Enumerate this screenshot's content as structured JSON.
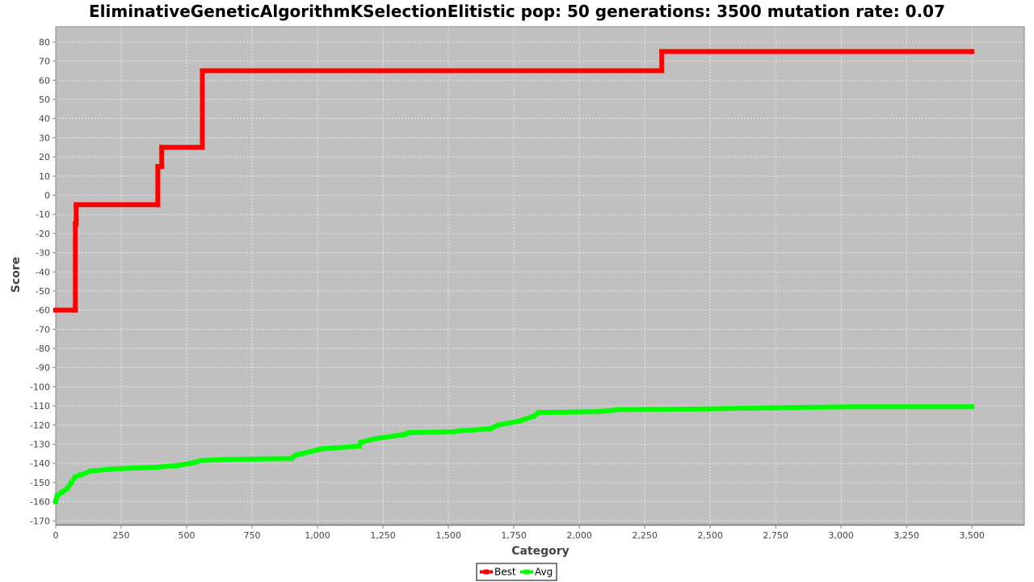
{
  "chart_data": {
    "type": "line",
    "title": "EliminativeGeneticAlgorithmKSelectionElitistic pop: 50 generations: 3500 mutation rate: 0.07",
    "xlabel": "Category",
    "ylabel": "Score",
    "xlim": [
      0,
      3700
    ],
    "ylim": [
      -172,
      88
    ],
    "x_ticks": [
      0,
      250,
      500,
      750,
      1000,
      1250,
      1500,
      1750,
      2000,
      2250,
      2500,
      2750,
      3000,
      3250,
      3500
    ],
    "x_tick_labels": [
      "0",
      "250",
      "500",
      "750",
      "1,000",
      "1,250",
      "1,500",
      "1,750",
      "2,000",
      "2,250",
      "2,500",
      "2,750",
      "3,000",
      "3,250",
      "3,500"
    ],
    "y_ticks": [
      -170,
      -160,
      -150,
      -140,
      -130,
      -120,
      -110,
      -100,
      -90,
      -80,
      -70,
      -60,
      -50,
      -40,
      -30,
      -20,
      -10,
      0,
      10,
      20,
      30,
      40,
      50,
      60,
      70,
      80
    ],
    "grid": true,
    "legend_position": "bottom-center",
    "background_color": "#c0c0c0",
    "series": [
      {
        "name": "Best",
        "color": "#ff0000",
        "points": [
          [
            0,
            -60
          ],
          [
            75,
            -60
          ],
          [
            75,
            -15
          ],
          [
            78,
            -15
          ],
          [
            78,
            -5
          ],
          [
            390,
            -5
          ],
          [
            390,
            15
          ],
          [
            405,
            15
          ],
          [
            405,
            25
          ],
          [
            560,
            25
          ],
          [
            560,
            65
          ],
          [
            2315,
            65
          ],
          [
            2315,
            75
          ],
          [
            3500,
            75
          ]
        ]
      },
      {
        "name": "Avg",
        "color": "#00ff00",
        "points": [
          [
            0,
            -160
          ],
          [
            5,
            -157
          ],
          [
            25,
            -155
          ],
          [
            45,
            -153
          ],
          [
            60,
            -150
          ],
          [
            75,
            -147
          ],
          [
            95,
            -146
          ],
          [
            135,
            -144
          ],
          [
            215,
            -143
          ],
          [
            390,
            -142
          ],
          [
            470,
            -141
          ],
          [
            515,
            -140
          ],
          [
            560,
            -138.5
          ],
          [
            660,
            -138
          ],
          [
            900,
            -137.5
          ],
          [
            920,
            -135.5
          ],
          [
            940,
            -135
          ],
          [
            1015,
            -132.5
          ],
          [
            1160,
            -131
          ],
          [
            1165,
            -129
          ],
          [
            1225,
            -127
          ],
          [
            1330,
            -125
          ],
          [
            1350,
            -124
          ],
          [
            1520,
            -123.5
          ],
          [
            1545,
            -123
          ],
          [
            1660,
            -122
          ],
          [
            1690,
            -120
          ],
          [
            1770,
            -118
          ],
          [
            1825,
            -115.5
          ],
          [
            1845,
            -113.5
          ],
          [
            2070,
            -113
          ],
          [
            2155,
            -112
          ],
          [
            2500,
            -111.5
          ],
          [
            2740,
            -111
          ],
          [
            3040,
            -110.5
          ],
          [
            3500,
            -110.5
          ]
        ]
      }
    ]
  }
}
